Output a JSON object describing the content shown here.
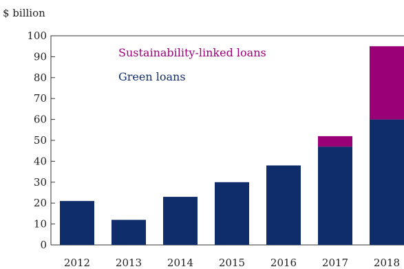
{
  "chart_data": {
    "type": "bar",
    "stacked": true,
    "unit_label": "$ billion",
    "categories": [
      "2012",
      "2013",
      "2014",
      "2015",
      "2016",
      "2017",
      "2018"
    ],
    "series": [
      {
        "name": "Green loans",
        "color": "#0f2d6b",
        "values": [
          21,
          12,
          23,
          30,
          38,
          47,
          60
        ]
      },
      {
        "name": "Sustainability-linked loans",
        "color": "#990077",
        "values": [
          0,
          0,
          0,
          0,
          0,
          5,
          35
        ]
      }
    ],
    "ylim": [
      0,
      100
    ],
    "yticks": [
      0,
      10,
      20,
      30,
      40,
      50,
      60,
      70,
      80,
      90,
      100
    ],
    "grid": false,
    "legend_placement": "top-center"
  }
}
